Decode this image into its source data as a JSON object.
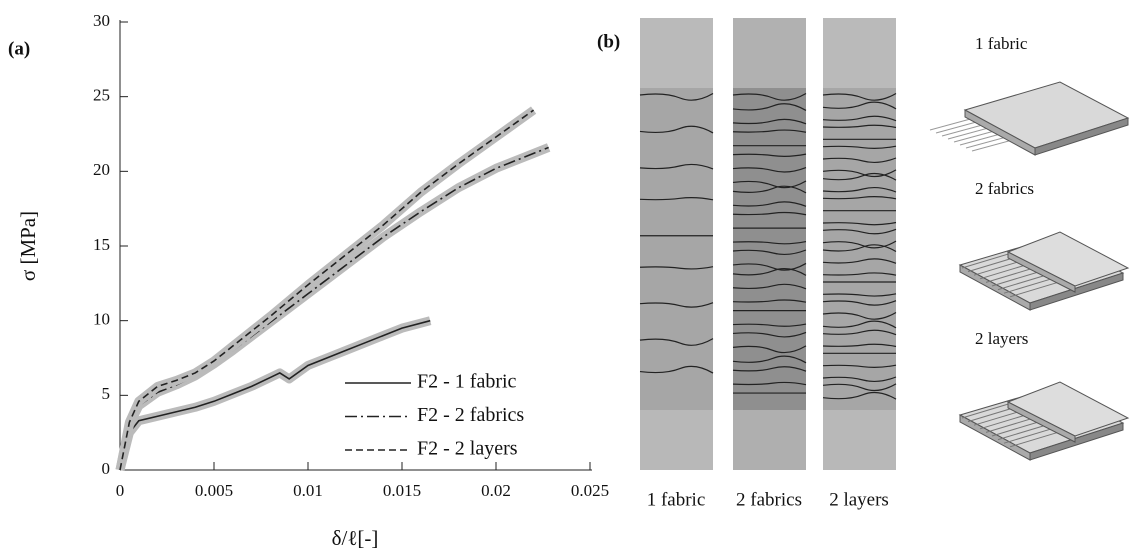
{
  "chart_data": {
    "type": "line",
    "panel_label": "(a)",
    "xlabel": "δ/ℓ[-]",
    "ylabel": "σ [MPa]",
    "xlim": [
      0,
      0.025
    ],
    "ylim": [
      0,
      30
    ],
    "xticks": [
      0,
      0.005,
      0.01,
      0.015,
      0.02,
      0.025
    ],
    "yticks": [
      0,
      5,
      10,
      15,
      20,
      25,
      30
    ],
    "legend": "lower right",
    "series": [
      {
        "name": "F2 - 1 fabric",
        "color": "#222222",
        "dash": "solid",
        "x": [
          0,
          0.0005,
          0.001,
          0.002,
          0.003,
          0.004,
          0.005,
          0.006,
          0.007,
          0.008,
          0.0085,
          0.009,
          0.01,
          0.011,
          0.012,
          0.013,
          0.014,
          0.015,
          0.0165
        ],
        "y": [
          0,
          2.5,
          3.3,
          3.6,
          3.9,
          4.2,
          4.6,
          5.1,
          5.6,
          6.2,
          6.5,
          6.1,
          7.0,
          7.5,
          8.0,
          8.5,
          9.0,
          9.5,
          10.0
        ]
      },
      {
        "name": "F2 - 2 fabrics",
        "color": "#222222",
        "dash": "dashdot",
        "x": [
          0,
          0.0005,
          0.001,
          0.002,
          0.003,
          0.004,
          0.005,
          0.006,
          0.008,
          0.01,
          0.012,
          0.014,
          0.016,
          0.018,
          0.02,
          0.022,
          0.0228
        ],
        "y": [
          0,
          3.0,
          4.3,
          5.2,
          5.7,
          6.3,
          7.1,
          8.0,
          9.9,
          11.8,
          13.7,
          15.6,
          17.3,
          18.9,
          20.2,
          21.2,
          21.6
        ]
      },
      {
        "name": "F2 - 2 layers",
        "color": "#222222",
        "dash": "dashed",
        "x": [
          0,
          0.0005,
          0.001,
          0.002,
          0.003,
          0.004,
          0.005,
          0.006,
          0.008,
          0.01,
          0.012,
          0.014,
          0.016,
          0.018,
          0.02,
          0.022
        ],
        "y": [
          0,
          3.2,
          4.6,
          5.6,
          6.0,
          6.5,
          7.3,
          8.3,
          10.3,
          12.4,
          14.4,
          16.4,
          18.6,
          20.5,
          22.3,
          24.1
        ]
      }
    ]
  },
  "panel_b": {
    "label": "(b)",
    "specimens": [
      "1 fabric",
      "2 fabrics",
      "2 layers"
    ],
    "diagrams": [
      "1 fabric",
      "2 fabrics",
      "2 layers"
    ]
  }
}
